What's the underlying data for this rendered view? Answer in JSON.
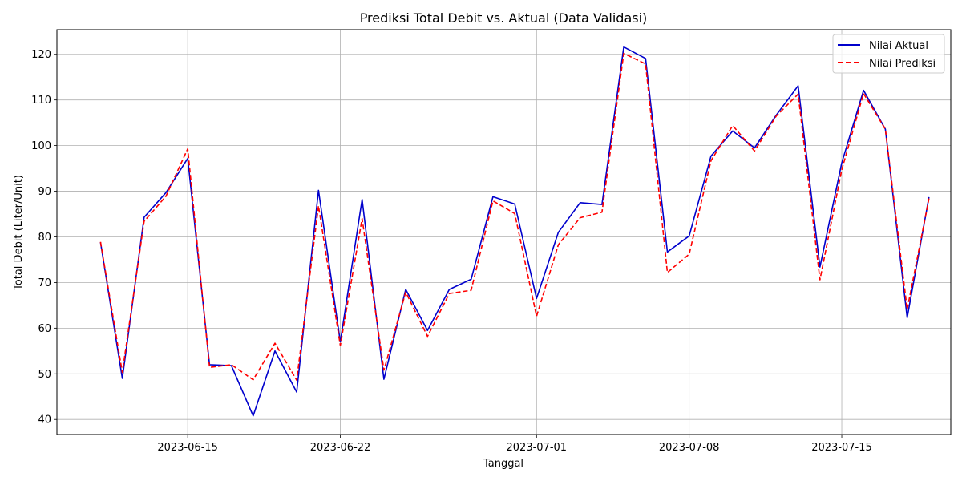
{
  "chart_data": {
    "type": "line",
    "title": "Prediksi Total Debit vs. Aktual (Data Validasi)",
    "xlabel": "Tanggal",
    "ylabel": "Total Debit (Liter/Unit)",
    "x": [
      "2023-06-11",
      "2023-06-12",
      "2023-06-13",
      "2023-06-14",
      "2023-06-15",
      "2023-06-16",
      "2023-06-17",
      "2023-06-18",
      "2023-06-19",
      "2023-06-20",
      "2023-06-21",
      "2023-06-22",
      "2023-06-23",
      "2023-06-24",
      "2023-06-25",
      "2023-06-26",
      "2023-06-27",
      "2023-06-28",
      "2023-06-29",
      "2023-06-30",
      "2023-07-01",
      "2023-07-02",
      "2023-07-03",
      "2023-07-04",
      "2023-07-05",
      "2023-07-06",
      "2023-07-07",
      "2023-07-08",
      "2023-07-09",
      "2023-07-10",
      "2023-07-11",
      "2023-07-12",
      "2023-07-13",
      "2023-07-14",
      "2023-07-15",
      "2023-07-16",
      "2023-07-17",
      "2023-07-18",
      "2023-07-19"
    ],
    "xticks": [
      "2023-06-15",
      "2023-06-22",
      "2023-07-01",
      "2023-07-08",
      "2023-07-15"
    ],
    "xlim": [
      "2023-06-09",
      "2023-07-20"
    ],
    "ylim": [
      36.7,
      125.4
    ],
    "yticks": [
      40,
      50,
      60,
      70,
      80,
      90,
      100,
      110,
      120
    ],
    "grid": true,
    "legend_position": "top-right",
    "series": [
      {
        "name": "Nilai Aktual",
        "color": "#0000cc",
        "style": "solid",
        "values": [
          78.8,
          49.0,
          84.3,
          89.7,
          97.2,
          52.0,
          51.8,
          40.8,
          55.0,
          46.0,
          90.2,
          57.0,
          88.2,
          48.8,
          68.5,
          59.5,
          68.5,
          70.7,
          88.8,
          87.2,
          66.5,
          81.0,
          87.5,
          87.1,
          121.6,
          119.1,
          76.7,
          80.2,
          97.7,
          103.2,
          99.5,
          106.7,
          113.1,
          73.4,
          96.2,
          112.1,
          103.6,
          62.3,
          88.7
        ]
      },
      {
        "name": "Nilai Prediksi",
        "color": "#ff0000",
        "style": "dashed",
        "values": [
          78.9,
          50.3,
          83.4,
          88.9,
          99.3,
          51.4,
          52.0,
          48.7,
          56.7,
          48.6,
          86.8,
          56.2,
          84.0,
          50.8,
          67.9,
          58.2,
          67.6,
          68.3,
          87.9,
          85.1,
          62.6,
          78.3,
          84.2,
          85.4,
          120.2,
          117.9,
          72.2,
          76.2,
          96.7,
          104.4,
          98.8,
          106.5,
          111.3,
          70.6,
          94.7,
          111.4,
          103.6,
          64.1,
          88.4
        ]
      }
    ]
  }
}
